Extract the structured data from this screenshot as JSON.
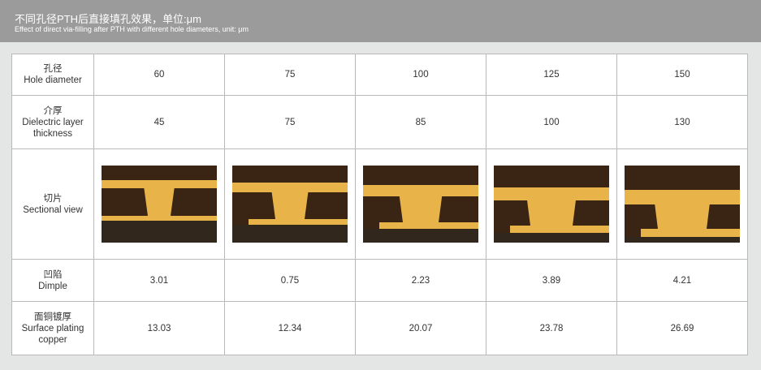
{
  "header": {
    "title_cn": "不同孔径PTH后直接填孔效果，单位:μm",
    "title_en": "Effect of direct via-filling after PTH with different hole diameters, unit: μm"
  },
  "rows": [
    {
      "label_cn": "孔径",
      "label_en": "Hole diameter",
      "values": [
        "60",
        "75",
        "100",
        "125",
        "150"
      ]
    },
    {
      "label_cn": "介厚",
      "label_en": "Dielectric layer thickness",
      "values": [
        "45",
        "75",
        "85",
        "100",
        "130"
      ]
    },
    {
      "label_cn": "切片",
      "label_en": "Sectional view",
      "values": []
    },
    {
      "label_cn": "凹陷",
      "label_en": "Dimple",
      "values": [
        "3.01",
        "0.75",
        "2.23",
        "3.89",
        "4.21"
      ]
    },
    {
      "label_cn": "面铜镀厚",
      "label_en": "Surface plating copper",
      "values": [
        "13.03",
        "12.34",
        "20.07",
        "23.78",
        "26.69"
      ]
    }
  ],
  "colors": {
    "header_bg": "#9b9b9b",
    "copper": "#e8b44a",
    "substrate": "#3a2414"
  }
}
